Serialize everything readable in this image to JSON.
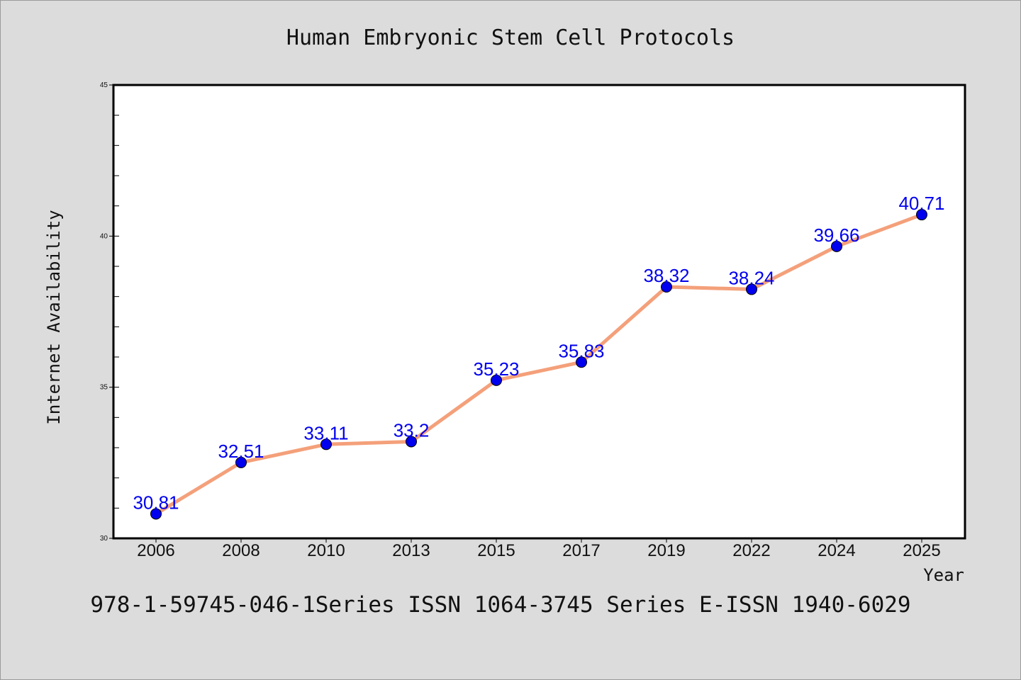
{
  "chart_data": {
    "type": "line",
    "title": "Human Embryonic Stem Cell Protocols",
    "xlabel": "Year",
    "ylabel": "Internet Availability",
    "categories": [
      "2006",
      "2008",
      "2010",
      "2013",
      "2015",
      "2017",
      "2019",
      "2022",
      "2024",
      "2025"
    ],
    "values": [
      30.81,
      32.51,
      33.11,
      33.2,
      35.23,
      35.83,
      38.32,
      38.24,
      39.66,
      40.71
    ],
    "data_labels": [
      "30.81",
      "32.51",
      "33.11",
      "33.2",
      "35.23",
      "35.83",
      "38.32",
      "38.24",
      "39.66",
      "40.71"
    ],
    "ylim": [
      30,
      45
    ],
    "yticks": [
      "30",
      "35",
      "40",
      "45"
    ],
    "y_minor_step": 1,
    "grid": false,
    "line_color": "#f4a07a",
    "marker_color": "#0000ee",
    "label_color": "#0000ee"
  },
  "footer": {
    "text": "978-1-59745-046-1Series ISSN 1064-3745 Series E-ISSN 1940-6029"
  }
}
